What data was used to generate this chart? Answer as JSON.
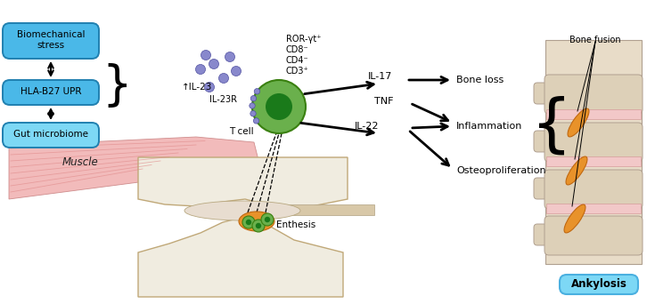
{
  "bg_color": "#ffffff",
  "ankylosis_box_color": "#7dd8f5",
  "ankylosis_box_edge": "#4ab0e0",
  "labels": {
    "muscle": "Muscle",
    "enthesis": "Enthesis",
    "tcell": "T cell",
    "il23r": "IL-23R",
    "il23": "↑IL-23",
    "gut": "Gut microbiome",
    "hla": "HLA-B27 UPR",
    "bio": "Biomechanical\nstress",
    "cd3": "CD3⁺",
    "cd4": "CD4⁻",
    "cd8": "CD8⁻",
    "ror": "ROR-γt⁺",
    "il22": "IL-22",
    "tnf": "TNF",
    "il17": "IL-17",
    "osteo": "Osteoproliferation",
    "inflam": "Inflammation",
    "bone_loss": "Bone loss",
    "ankylosis": "Ankylosis",
    "bone_fusion": "Bone fusion"
  },
  "spine_color": "#ddd0b8",
  "spine_edge": "#b0a090",
  "disc_color": "#f2c8c8",
  "orange_color": "#e8922a",
  "orange_edge": "#c06810",
  "green_outer": "#6ab04c",
  "green_inner": "#1a7a1a",
  "purple_color": "#8888cc",
  "muscle_color": "#f0b0b0",
  "bone_color": "#e8dcc8",
  "box_gut_face": "#7dd8f5",
  "box_hla_face": "#4ab8e8",
  "box_bio_face": "#4ab8e8",
  "box_edge": "#2080b0"
}
